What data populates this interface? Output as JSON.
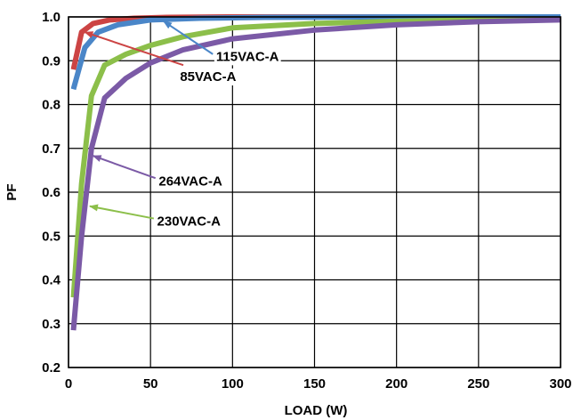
{
  "chart_data": {
    "type": "line",
    "xlabel": "LOAD (W)",
    "ylabel": "PF",
    "xlim": [
      0,
      300
    ],
    "ylim": [
      0.2,
      1.0
    ],
    "x_ticks": [
      "0",
      "50",
      "100",
      "150",
      "200",
      "250",
      "300"
    ],
    "y_ticks": [
      "0.2",
      "0.3",
      "0.4",
      "0.5",
      "0.6",
      "0.7",
      "0.8",
      "0.9",
      "1.0"
    ],
    "grid": true,
    "series": [
      {
        "name": "85VAC-A",
        "color": "#cc4444",
        "points": [
          [
            3,
            0.88
          ],
          [
            8,
            0.965
          ],
          [
            15,
            0.985
          ],
          [
            25,
            0.993
          ],
          [
            40,
            0.997
          ],
          [
            60,
            0.999
          ],
          [
            100,
            1.0
          ],
          [
            200,
            1.0
          ],
          [
            300,
            1.0
          ]
        ]
      },
      {
        "name": "115VAC-A",
        "color": "#4a86c8",
        "points": [
          [
            3,
            0.835
          ],
          [
            10,
            0.93
          ],
          [
            18,
            0.965
          ],
          [
            30,
            0.982
          ],
          [
            50,
            0.993
          ],
          [
            80,
            0.997
          ],
          [
            120,
            0.999
          ],
          [
            200,
            1.0
          ],
          [
            300,
            1.0
          ]
        ]
      },
      {
        "name": "230VAC-A",
        "color": "#8cbf4a",
        "points": [
          [
            3,
            0.36
          ],
          [
            8,
            0.62
          ],
          [
            14,
            0.82
          ],
          [
            22,
            0.89
          ],
          [
            35,
            0.915
          ],
          [
            50,
            0.935
          ],
          [
            70,
            0.955
          ],
          [
            100,
            0.975
          ],
          [
            150,
            0.985
          ],
          [
            200,
            0.99
          ],
          [
            250,
            0.993
          ],
          [
            300,
            0.995
          ]
        ]
      },
      {
        "name": "264VAC-A",
        "color": "#7b5aa6",
        "points": [
          [
            3,
            0.285
          ],
          [
            8,
            0.5
          ],
          [
            14,
            0.7
          ],
          [
            22,
            0.815
          ],
          [
            35,
            0.86
          ],
          [
            50,
            0.895
          ],
          [
            70,
            0.925
          ],
          [
            100,
            0.95
          ],
          [
            150,
            0.97
          ],
          [
            200,
            0.982
          ],
          [
            250,
            0.989
          ],
          [
            300,
            0.993
          ]
        ]
      }
    ],
    "annotations": [
      {
        "text": "115VAC-A",
        "series": "115VAC-A",
        "arrow_from": [
          88,
          0.915
        ],
        "arrow_to": [
          58,
          0.99
        ],
        "label_at": [
          90,
          0.91
        ]
      },
      {
        "text": "85VAC-A",
        "series": "85VAC-A",
        "arrow_from": [
          70,
          0.89
        ],
        "arrow_to": [
          10,
          0.965
        ],
        "label_at": [
          68,
          0.864
        ]
      },
      {
        "text": "264VAC-A",
        "series": "264VAC-A",
        "arrow_from": [
          53,
          0.632
        ],
        "arrow_to": [
          15,
          0.683
        ],
        "label_at": [
          55,
          0.625
        ]
      },
      {
        "text": "230VAC-A",
        "series": "230VAC-A",
        "arrow_from": [
          52,
          0.54
        ],
        "arrow_to": [
          13,
          0.568
        ],
        "label_at": [
          54,
          0.534
        ]
      }
    ]
  }
}
